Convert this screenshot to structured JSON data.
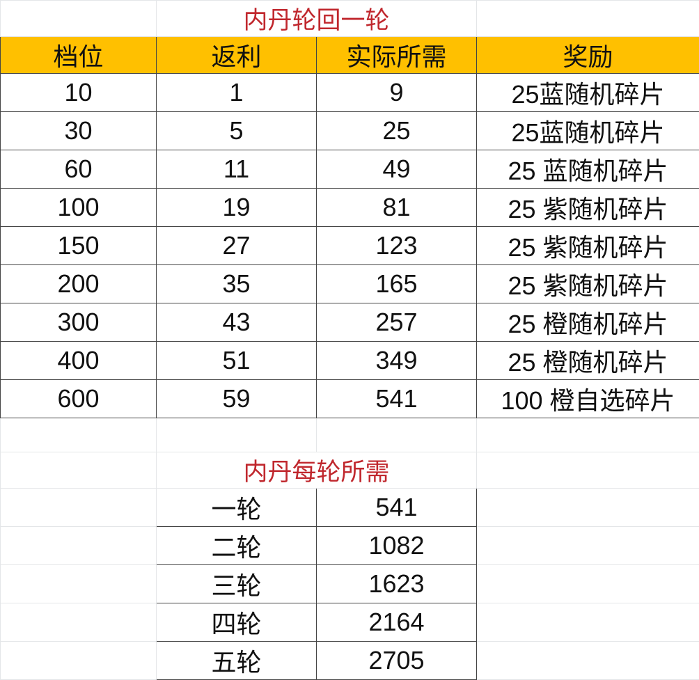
{
  "table1": {
    "title": "内丹轮回一轮",
    "headers": [
      "档位",
      "返利",
      "实际所需",
      "奖励"
    ],
    "rows": [
      [
        "10",
        "1",
        "9",
        "25蓝随机碎片"
      ],
      [
        "30",
        "5",
        "25",
        "25蓝随机碎片"
      ],
      [
        "60",
        "11",
        "49",
        "25 蓝随机碎片"
      ],
      [
        "100",
        "19",
        "81",
        "25 紫随机碎片"
      ],
      [
        "150",
        "27",
        "123",
        "25 紫随机碎片"
      ],
      [
        "200",
        "35",
        "165",
        "25 紫随机碎片"
      ],
      [
        "300",
        "43",
        "257",
        "25 橙随机碎片"
      ],
      [
        "400",
        "51",
        "349",
        "25 橙随机碎片"
      ],
      [
        "600",
        "59",
        "541",
        "100 橙自选碎片"
      ]
    ]
  },
  "table2": {
    "title": "内丹每轮所需",
    "rows": [
      [
        "一轮",
        "541"
      ],
      [
        "二轮",
        "1082"
      ],
      [
        "三轮",
        "1623"
      ],
      [
        "四轮",
        "2164"
      ],
      [
        "五轮",
        "2705"
      ]
    ]
  },
  "colors": {
    "header_fill": "#ffc000",
    "title_text": "#c0272d"
  }
}
